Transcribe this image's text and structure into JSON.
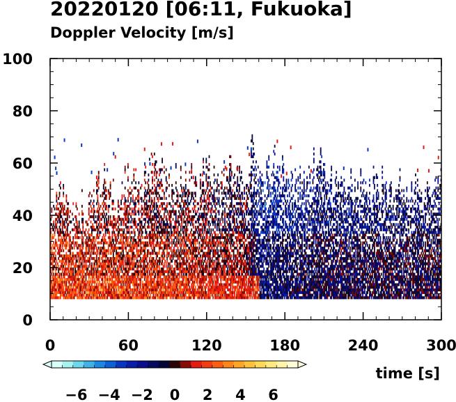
{
  "chart_data": {
    "type": "heatmap",
    "title": "20220120 [06:11, Fukuoka]",
    "subtitle": "Doppler Velocity [m/s]",
    "xlabel": "time [s]",
    "ylabel": "",
    "xlim": [
      0,
      300
    ],
    "ylim": [
      0,
      100
    ],
    "x_ticks": [
      0,
      60,
      120,
      180,
      240,
      300
    ],
    "y_ticks": [
      0,
      20,
      40,
      60,
      80,
      100
    ],
    "grid": false,
    "data_lower_bound": 8,
    "echo_top_profile": {
      "time": [
        0,
        10,
        20,
        30,
        40,
        50,
        60,
        70,
        80,
        85,
        90,
        100,
        110,
        120,
        130,
        140,
        150,
        155,
        160,
        170,
        180,
        190,
        200,
        210,
        220,
        230,
        240,
        250,
        260,
        270,
        280,
        290,
        300
      ],
      "top_height": [
        40,
        48,
        42,
        45,
        52,
        46,
        55,
        50,
        62,
        60,
        48,
        55,
        52,
        56,
        50,
        58,
        52,
        68,
        50,
        60,
        55,
        50,
        58,
        60,
        52,
        55,
        50,
        52,
        48,
        50,
        52,
        50,
        55
      ]
    },
    "regime_profile": {
      "time": [
        0,
        50,
        100,
        150,
        160,
        200,
        250,
        300
      ],
      "mean_velocity": [
        1.5,
        1.3,
        1.0,
        0.4,
        -1.5,
        -0.9,
        -0.7,
        -0.6
      ]
    },
    "colorbar": {
      "label": "Doppler Velocity [m/s]",
      "range": [
        -7.5,
        7.5
      ],
      "ticks": [
        -6,
        -4,
        -2,
        0,
        2,
        4,
        6
      ],
      "tick_labels": [
        "−6",
        "−4",
        "−2",
        "0",
        "2",
        "4",
        "6"
      ],
      "colors": [
        "#d8fffa",
        "#a8f2ef",
        "#6fd7ec",
        "#3fb1e6",
        "#1d87e3",
        "#0d5fd6",
        "#0836c3",
        "#0a1da8",
        "#0a0d8c",
        "#060a60",
        "#050638",
        "#2a0605",
        "#8a0a06",
        "#e41b10",
        "#f23c12",
        "#fa5e15",
        "#ff8518",
        "#ffa724",
        "#ffc23a",
        "#ffd85a",
        "#ffea80",
        "#fff4a8",
        "#fffbd8"
      ]
    }
  }
}
